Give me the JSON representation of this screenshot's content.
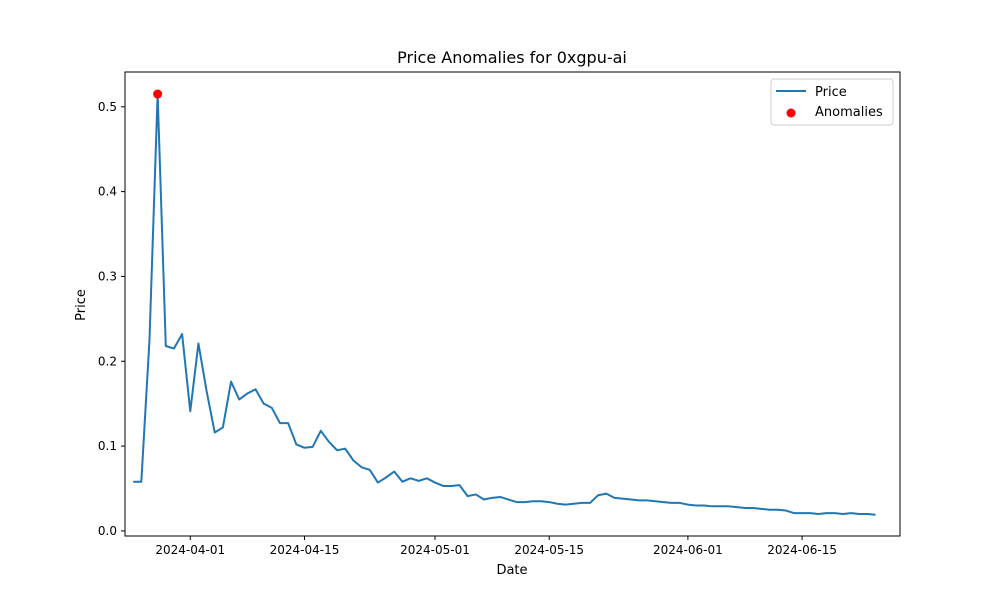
{
  "chart_data": {
    "type": "line",
    "title": "Price Anomalies for 0xgpu-ai",
    "xlabel": "Date",
    "ylabel": "Price",
    "x_ticks": [
      "2024-04-01",
      "2024-04-15",
      "2024-05-01",
      "2024-05-15",
      "2024-06-01",
      "2024-06-15"
    ],
    "y_ticks": [
      "0.0",
      "0.1",
      "0.2",
      "0.3",
      "0.4",
      "0.5"
    ],
    "xlim": [
      "2024-03-24",
      "2024-06-27"
    ],
    "ylim": [
      -0.006,
      0.541
    ],
    "legend_position": "top-right",
    "grid": false,
    "series": [
      {
        "name": "Price",
        "color": "#1f77b4",
        "points": [
          [
            "2024-03-25",
            0.058
          ],
          [
            "2024-03-26",
            0.058
          ],
          [
            "2024-03-27",
            0.225
          ],
          [
            "2024-03-28",
            0.515
          ],
          [
            "2024-03-29",
            0.218
          ],
          [
            "2024-03-30",
            0.215
          ],
          [
            "2024-03-31",
            0.232
          ],
          [
            "2024-04-01",
            0.141
          ],
          [
            "2024-04-02",
            0.221
          ],
          [
            "2024-04-03",
            0.165
          ],
          [
            "2024-04-04",
            0.116
          ],
          [
            "2024-04-05",
            0.122
          ],
          [
            "2024-04-06",
            0.176
          ],
          [
            "2024-04-07",
            0.155
          ],
          [
            "2024-04-08",
            0.162
          ],
          [
            "2024-04-09",
            0.167
          ],
          [
            "2024-04-10",
            0.15
          ],
          [
            "2024-04-11",
            0.145
          ],
          [
            "2024-04-12",
            0.127
          ],
          [
            "2024-04-13",
            0.127
          ],
          [
            "2024-04-14",
            0.102
          ],
          [
            "2024-04-15",
            0.098
          ],
          [
            "2024-04-16",
            0.099
          ],
          [
            "2024-04-17",
            0.118
          ],
          [
            "2024-04-18",
            0.105
          ],
          [
            "2024-04-19",
            0.095
          ],
          [
            "2024-04-20",
            0.097
          ],
          [
            "2024-04-21",
            0.083
          ],
          [
            "2024-04-22",
            0.075
          ],
          [
            "2024-04-23",
            0.072
          ],
          [
            "2024-04-24",
            0.057
          ],
          [
            "2024-04-25",
            0.063
          ],
          [
            "2024-04-26",
            0.07
          ],
          [
            "2024-04-27",
            0.058
          ],
          [
            "2024-04-28",
            0.062
          ],
          [
            "2024-04-29",
            0.059
          ],
          [
            "2024-04-30",
            0.062
          ],
          [
            "2024-05-01",
            0.057
          ],
          [
            "2024-05-02",
            0.053
          ],
          [
            "2024-05-03",
            0.053
          ],
          [
            "2024-05-04",
            0.054
          ],
          [
            "2024-05-05",
            0.041
          ],
          [
            "2024-05-06",
            0.043
          ],
          [
            "2024-05-07",
            0.037
          ],
          [
            "2024-05-08",
            0.039
          ],
          [
            "2024-05-09",
            0.04
          ],
          [
            "2024-05-10",
            0.037
          ],
          [
            "2024-05-11",
            0.034
          ],
          [
            "2024-05-12",
            0.034
          ],
          [
            "2024-05-13",
            0.035
          ],
          [
            "2024-05-14",
            0.035
          ],
          [
            "2024-05-15",
            0.034
          ],
          [
            "2024-05-16",
            0.032
          ],
          [
            "2024-05-17",
            0.031
          ],
          [
            "2024-05-18",
            0.032
          ],
          [
            "2024-05-19",
            0.033
          ],
          [
            "2024-05-20",
            0.033
          ],
          [
            "2024-05-21",
            0.042
          ],
          [
            "2024-05-22",
            0.044
          ],
          [
            "2024-05-23",
            0.039
          ],
          [
            "2024-05-24",
            0.038
          ],
          [
            "2024-05-25",
            0.037
          ],
          [
            "2024-05-26",
            0.036
          ],
          [
            "2024-05-27",
            0.036
          ],
          [
            "2024-05-28",
            0.035
          ],
          [
            "2024-05-29",
            0.034
          ],
          [
            "2024-05-30",
            0.033
          ],
          [
            "2024-05-31",
            0.033
          ],
          [
            "2024-06-01",
            0.031
          ],
          [
            "2024-06-02",
            0.03
          ],
          [
            "2024-06-03",
            0.03
          ],
          [
            "2024-06-04",
            0.029
          ],
          [
            "2024-06-05",
            0.029
          ],
          [
            "2024-06-06",
            0.029
          ],
          [
            "2024-06-07",
            0.028
          ],
          [
            "2024-06-08",
            0.027
          ],
          [
            "2024-06-09",
            0.027
          ],
          [
            "2024-06-10",
            0.026
          ],
          [
            "2024-06-11",
            0.025
          ],
          [
            "2024-06-12",
            0.025
          ],
          [
            "2024-06-13",
            0.024
          ],
          [
            "2024-06-14",
            0.021
          ],
          [
            "2024-06-15",
            0.021
          ],
          [
            "2024-06-16",
            0.021
          ],
          [
            "2024-06-17",
            0.02
          ],
          [
            "2024-06-18",
            0.021
          ],
          [
            "2024-06-19",
            0.021
          ],
          [
            "2024-06-20",
            0.02
          ],
          [
            "2024-06-21",
            0.021
          ],
          [
            "2024-06-22",
            0.02
          ],
          [
            "2024-06-23",
            0.02
          ],
          [
            "2024-06-24",
            0.019
          ]
        ]
      },
      {
        "name": "Anomalies",
        "type": "scatter",
        "color": "#ff0000",
        "points": [
          [
            "2024-03-28",
            0.515
          ]
        ]
      }
    ]
  }
}
